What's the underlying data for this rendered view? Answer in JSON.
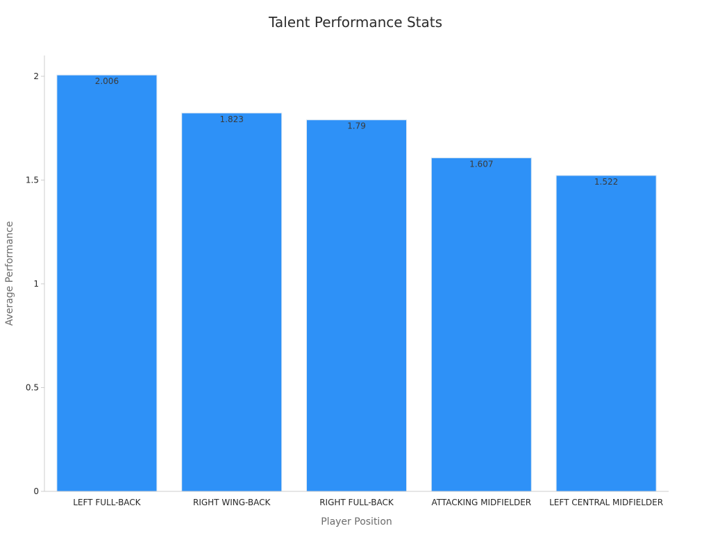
{
  "chart_data": {
    "type": "bar",
    "title": "Talent Performance Stats",
    "xlabel": "Player Position",
    "ylabel": "Average Performance",
    "categories": [
      "LEFT FULL-BACK",
      "RIGHT WING-BACK",
      "RIGHT FULL-BACK",
      "ATTACKING MIDFIELDER",
      "LEFT CENTRAL MIDFIELDER"
    ],
    "values": [
      2.006,
      1.823,
      1.79,
      1.607,
      1.522
    ],
    "value_labels": [
      "2.006",
      "1.823",
      "1.79",
      "1.607",
      "1.522"
    ],
    "ylim": [
      0,
      2.1
    ],
    "yticks": [
      0,
      0.5,
      1,
      1.5,
      2
    ],
    "ytick_labels": [
      "0",
      "0.5",
      "1",
      "1.5",
      "2"
    ],
    "grid": false,
    "bar_color": "#2E91F7",
    "bar_edge_color": "#d9e6f2",
    "axis_color": "#cccccc"
  }
}
